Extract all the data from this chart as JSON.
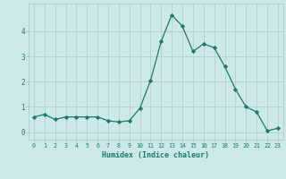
{
  "x": [
    0,
    1,
    2,
    3,
    4,
    5,
    6,
    7,
    8,
    9,
    10,
    11,
    12,
    13,
    14,
    15,
    16,
    17,
    18,
    19,
    20,
    21,
    22,
    23
  ],
  "y": [
    0.6,
    0.7,
    0.5,
    0.6,
    0.6,
    0.6,
    0.6,
    0.45,
    0.4,
    0.45,
    0.95,
    2.05,
    3.6,
    4.65,
    4.2,
    3.2,
    3.5,
    3.35,
    2.6,
    1.7,
    1.0,
    0.8,
    0.05,
    0.15
  ],
  "xlabel": "Humidex (Indice chaleur)",
  "ylabel": "",
  "ylim": [
    -0.3,
    5.1
  ],
  "xlim": [
    -0.5,
    23.5
  ],
  "bg_color": "#cce8e8",
  "line_color": "#1a7a6e",
  "marker_color": "#1a7a6e",
  "grid_color": "#aacece",
  "tick_label_color": "#1a7a6e",
  "xlabel_color": "#1a7a6e",
  "yticks": [
    0,
    1,
    2,
    3,
    4
  ],
  "xticks": [
    0,
    1,
    2,
    3,
    4,
    5,
    6,
    7,
    8,
    9,
    10,
    11,
    12,
    13,
    14,
    15,
    16,
    17,
    18,
    19,
    20,
    21,
    22,
    23
  ]
}
